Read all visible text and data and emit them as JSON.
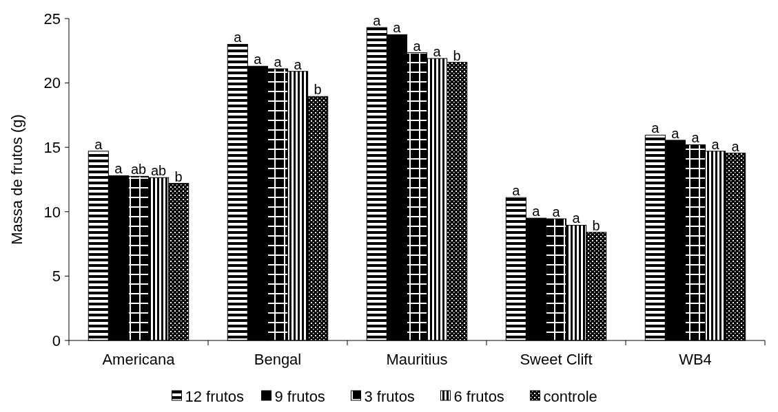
{
  "chart_data": {
    "type": "bar",
    "ylabel": "Massa de frutos (g)",
    "categories": [
      "Americana",
      "Bengal",
      "Mauritius",
      "Sweet Clift",
      "WB4"
    ],
    "series": [
      {
        "name": "12 frutos",
        "color": "#000000",
        "values": [
          14.7,
          23.0,
          24.3,
          11.1,
          15.95
        ],
        "value_labels": [
          "a",
          "a",
          "a",
          "a",
          "a"
        ]
      },
      {
        "name": "9 frutos",
        "color": "#000000",
        "values": [
          12.8,
          21.3,
          23.75,
          9.5,
          15.55
        ],
        "value_labels": [
          "a",
          "a",
          "a",
          "a",
          "a"
        ]
      },
      {
        "name": "3 frutos",
        "color": "#000000",
        "values": [
          12.75,
          21.1,
          22.35,
          9.45,
          15.2
        ],
        "value_labels": [
          "ab",
          "a",
          "a",
          "a",
          "a"
        ]
      },
      {
        "name": "6 frutos",
        "color": "#000000",
        "values": [
          12.65,
          20.9,
          21.9,
          8.95,
          14.7
        ],
        "value_labels": [
          "ab",
          "a",
          "a",
          "a",
          "a"
        ]
      },
      {
        "name": "controle",
        "color": "#000000",
        "values": [
          12.2,
          18.95,
          21.6,
          8.4,
          14.55
        ],
        "value_labels": [
          "b",
          "b",
          "b",
          "b",
          "a"
        ]
      }
    ],
    "ylim": [
      0,
      25
    ],
    "yticks": [
      0,
      5,
      10,
      15,
      20,
      25
    ],
    "grid": false,
    "legend": "bottom"
  }
}
